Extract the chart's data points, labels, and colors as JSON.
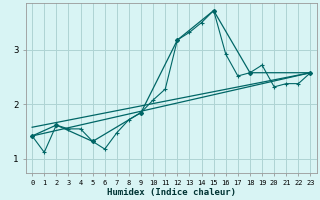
{
  "xlabel": "Humidex (Indice chaleur)",
  "bg_color": "#d8f4f4",
  "grid_color": "#aed4d4",
  "line_color": "#006666",
  "xlim": [
    -0.5,
    23.5
  ],
  "ylim": [
    0.75,
    3.85
  ],
  "yticks": [
    1,
    2,
    3
  ],
  "xticks": [
    0,
    1,
    2,
    3,
    4,
    5,
    6,
    7,
    8,
    9,
    10,
    11,
    12,
    13,
    14,
    15,
    16,
    17,
    18,
    19,
    20,
    21,
    22,
    23
  ],
  "series1_x": [
    0,
    1,
    2,
    3,
    4,
    5,
    6,
    7,
    8,
    9,
    10,
    11,
    12,
    13,
    14,
    15,
    16,
    17,
    18,
    19,
    20,
    21,
    22,
    23
  ],
  "series1_y": [
    1.42,
    1.12,
    1.62,
    1.55,
    1.55,
    1.32,
    1.18,
    1.48,
    1.72,
    1.85,
    2.08,
    2.28,
    3.18,
    3.32,
    3.5,
    3.72,
    2.92,
    2.52,
    2.58,
    2.72,
    2.32,
    2.38,
    2.38,
    2.58
  ],
  "series2_x": [
    0,
    2,
    5,
    9,
    12,
    15,
    18,
    23
  ],
  "series2_y": [
    1.42,
    1.62,
    1.32,
    1.85,
    3.18,
    3.72,
    2.58,
    2.58
  ],
  "series3_x": [
    0,
    23
  ],
  "series3_y": [
    1.58,
    2.58
  ],
  "series4_x": [
    0,
    23
  ],
  "series4_y": [
    1.42,
    2.58
  ]
}
